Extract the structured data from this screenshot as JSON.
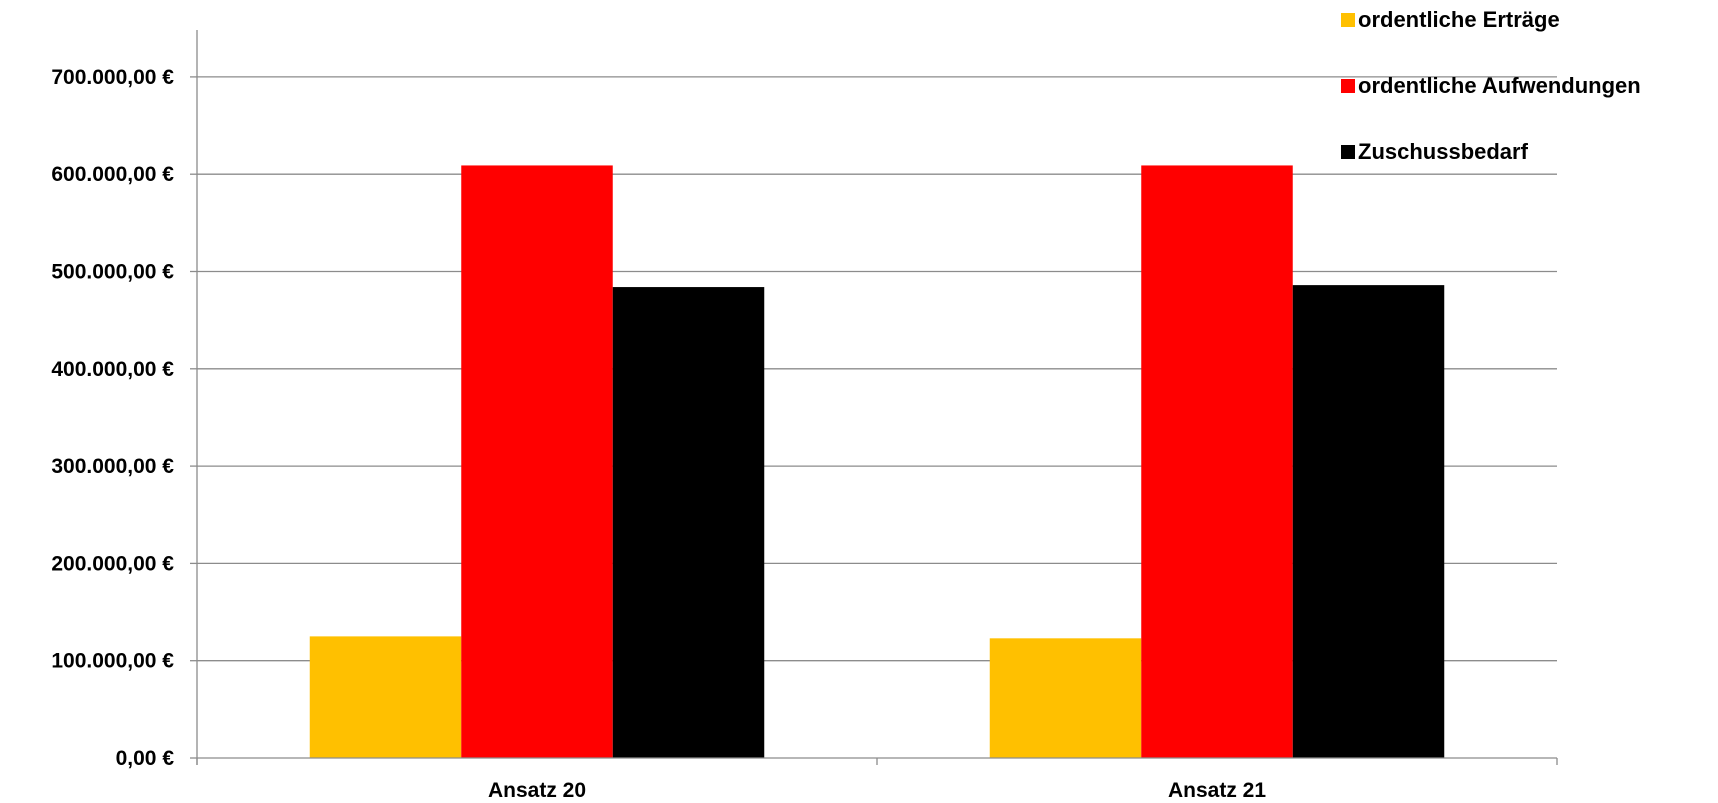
{
  "chart_data": {
    "type": "bar",
    "categories": [
      "Ansatz 20",
      "Ansatz 21"
    ],
    "series": [
      {
        "name": "ordentliche Erträge",
        "color": "#ffc000",
        "values": [
          125000,
          123000
        ]
      },
      {
        "name": "ordentliche Aufwendungen",
        "color": "#ff0000",
        "values": [
          609000,
          609000
        ]
      },
      {
        "name": "Zuschussbedarf",
        "color": "#000000",
        "values": [
          484000,
          486000
        ]
      }
    ],
    "ylim": [
      0,
      750000
    ],
    "yticks": [
      0,
      100000,
      200000,
      300000,
      400000,
      500000,
      600000,
      700000
    ],
    "ytick_labels": [
      "0,00 €",
      "100.000,00 €",
      "200.000,00 €",
      "300.000,00 €",
      "400.000,00 €",
      "500.000,00 €",
      "600.000,00 €",
      "700.000,00 €"
    ],
    "grid": true,
    "legend_position": "top-right"
  }
}
